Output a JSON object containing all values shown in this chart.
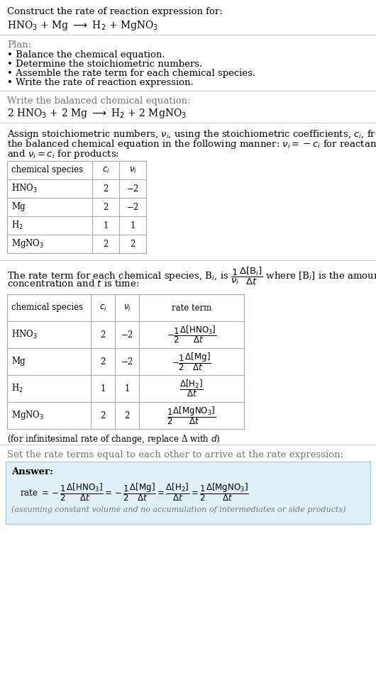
{
  "bg_color": "#ffffff",
  "text_color": "#000000",
  "gray_text": "#777777",
  "table_line_color": "#aaaaaa",
  "answer_bg": "#dff0f7",
  "answer_border": "#aaccdd",
  "section1_title": "Construct the rate of reaction expression for:",
  "section1_reaction": "HNO$_3$ + Mg $\\longrightarrow$ H$_2$ + MgNO$_3$",
  "section2_title": "Plan:",
  "section2_bullets": [
    "Balance the chemical equation.",
    "Determine the stoichiometric numbers.",
    "Assemble the rate term for each chemical species.",
    "Write the rate of reaction expression."
  ],
  "section3_title": "Write the balanced chemical equation:",
  "section3_equation": "2 HNO$_3$ + 2 Mg $\\longrightarrow$ H$_2$ + 2 MgNO$_3$",
  "section4_intro_lines": [
    "Assign stoichiometric numbers, $\\nu_i$, using the stoichiometric coefficients, $c_i$, from",
    "the balanced chemical equation in the following manner: $\\nu_i = -c_i$ for reactants",
    "and $\\nu_i = c_i$ for products:"
  ],
  "table1_headers": [
    "chemical species",
    "$c_i$",
    "$\\nu_i$"
  ],
  "table1_rows": [
    [
      "HNO$_3$",
      "2",
      "−2"
    ],
    [
      "Mg",
      "2",
      "−2"
    ],
    [
      "H$_2$",
      "1",
      "1"
    ],
    [
      "MgNO$_3$",
      "2",
      "2"
    ]
  ],
  "section5_intro_lines": [
    "The rate term for each chemical species, B$_i$, is $\\dfrac{1}{\\nu_i}\\dfrac{\\Delta[\\mathrm{B}_i]}{\\Delta t}$ where [B$_i$] is the amount",
    "concentration and $t$ is time:"
  ],
  "table2_headers": [
    "chemical species",
    "$c_i$",
    "$\\nu_i$",
    "rate term"
  ],
  "table2_rows": [
    [
      "HNO$_3$",
      "2",
      "−2",
      "$-\\dfrac{1}{2}\\dfrac{\\Delta[\\mathrm{HNO_3}]}{\\Delta t}$"
    ],
    [
      "Mg",
      "2",
      "−2",
      "$-\\dfrac{1}{2}\\dfrac{\\Delta[\\mathrm{Mg}]}{\\Delta t}$"
    ],
    [
      "H$_2$",
      "1",
      "1",
      "$\\dfrac{\\Delta[\\mathrm{H_2}]}{\\Delta t}$"
    ],
    [
      "MgNO$_3$",
      "2",
      "2",
      "$\\dfrac{1}{2}\\dfrac{\\Delta[\\mathrm{MgNO_3}]}{\\Delta t}$"
    ]
  ],
  "infinitesimal_note": "(for infinitesimal rate of change, replace Δ with $d$)",
  "section6_title": "Set the rate terms equal to each other to arrive at the rate expression:",
  "answer_label": "Answer:",
  "answer_eq_line": "rate $= -\\dfrac{1}{2}\\dfrac{\\Delta[\\mathrm{HNO_3}]}{\\Delta t} = -\\dfrac{1}{2}\\dfrac{\\Delta[\\mathrm{Mg}]}{\\Delta t} = \\dfrac{\\Delta[\\mathrm{H_2}]}{\\Delta t} = \\dfrac{1}{2}\\dfrac{\\Delta[\\mathrm{MgNO_3}]}{\\Delta t}$",
  "answer_note": "(assuming constant volume and no accumulation of intermediates or side products)"
}
